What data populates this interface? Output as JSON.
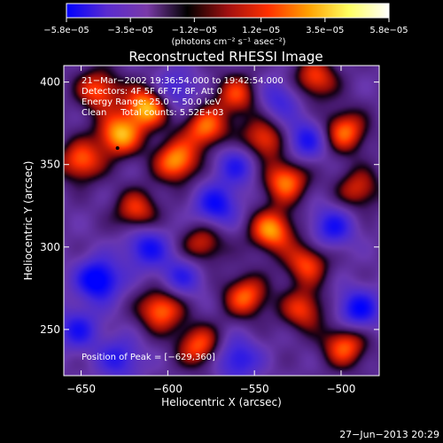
{
  "chart_data": {
    "type": "heatmap",
    "title": "Reconstructed RHESSI Image",
    "xlabel": "Heliocentric X (arcsec)",
    "ylabel": "Heliocentric Y (arcsec)",
    "xlim": [
      -660,
      -478
    ],
    "ylim": [
      222,
      410
    ],
    "xticks": [
      -650,
      -600,
      -550,
      -500
    ],
    "yticks": [
      250,
      300,
      350,
      400
    ],
    "x_tick_labels": [
      "−650",
      "−600",
      "−550",
      "−500"
    ],
    "y_tick_labels": [
      "250",
      "300",
      "350",
      "400"
    ],
    "colorbar": {
      "min": -5.8e-05,
      "max": 5.8e-05,
      "ticks": [
        -5.8e-05,
        -3.5e-05,
        -1.2e-05,
        1.2e-05,
        3.5e-05,
        5.8e-05
      ],
      "tick_labels": [
        "−5.8e−05",
        "−3.5e−05",
        "−1.2e−05",
        "1.2e−05",
        "3.5e−05",
        "5.8e−05"
      ],
      "unit_label": "(photons cm⁻² s⁻¹ asec⁻²)",
      "colors": [
        "#0000ff",
        "#5a2bd0",
        "#7a3aa8",
        "#000000",
        "#a01010",
        "#ff3000",
        "#ffa000",
        "#ffff60",
        "#ffffff"
      ]
    },
    "annotations": [
      "21−Mar−2002 19:36:54.000 to 19:42:54.000",
      "Detectors: 4F 5F 6F 7F 8F, Att 0",
      "Energy Range: 25.0 − 50.0 keV",
      "Clean     Total counts: 5.52E+03"
    ],
    "peak_text": "Position of Peak = [−629,360]",
    "peak": [
      -629,
      360
    ],
    "footer_date": "27−Jun−2013 20:29",
    "blobs": [
      {
        "x": -640,
        "y": 395,
        "v": 4e-05
      },
      {
        "x": -612,
        "y": 385,
        "v": 5.5e-05
      },
      {
        "x": -628,
        "y": 368,
        "v": 5.2e-05
      },
      {
        "x": -595,
        "y": 352,
        "v": 5e-05
      },
      {
        "x": -578,
        "y": 372,
        "v": 4.4e-05
      },
      {
        "x": -560,
        "y": 392,
        "v": 3.6e-05
      },
      {
        "x": -545,
        "y": 365,
        "v": 4e-05
      },
      {
        "x": -532,
        "y": 340,
        "v": 4.6e-05
      },
      {
        "x": -540,
        "y": 310,
        "v": 5e-05
      },
      {
        "x": -515,
        "y": 402,
        "v": 3.8e-05
      },
      {
        "x": -498,
        "y": 370,
        "v": 4.4e-05
      },
      {
        "x": -490,
        "y": 335,
        "v": 3.2e-05
      },
      {
        "x": -650,
        "y": 352,
        "v": 4.2e-05
      },
      {
        "x": -618,
        "y": 322,
        "v": 3.6e-05
      },
      {
        "x": -580,
        "y": 302,
        "v": 3.2e-05
      },
      {
        "x": -604,
        "y": 262,
        "v": 4.6e-05
      },
      {
        "x": -582,
        "y": 240,
        "v": 4e-05
      },
      {
        "x": -555,
        "y": 270,
        "v": 4.2e-05
      },
      {
        "x": -522,
        "y": 262,
        "v": 3.6e-05
      },
      {
        "x": -498,
        "y": 240,
        "v": 4.2e-05
      },
      {
        "x": -520,
        "y": 290,
        "v": 3.8e-05
      },
      {
        "x": -640,
        "y": 280,
        "v": -5e-05
      },
      {
        "x": -612,
        "y": 300,
        "v": -3.6e-05
      },
      {
        "x": -652,
        "y": 250,
        "v": -3.2e-05
      },
      {
        "x": -572,
        "y": 325,
        "v": -3.8e-05
      },
      {
        "x": -560,
        "y": 350,
        "v": -3e-05
      },
      {
        "x": -505,
        "y": 312,
        "v": -3.4e-05
      },
      {
        "x": -490,
        "y": 262,
        "v": -4e-05
      },
      {
        "x": -560,
        "y": 232,
        "v": -3.4e-05
      },
      {
        "x": -628,
        "y": 232,
        "v": -3e-05
      },
      {
        "x": -596,
        "y": 395,
        "v": -2.8e-05
      },
      {
        "x": -536,
        "y": 390,
        "v": -2.6e-05
      },
      {
        "x": -520,
        "y": 365,
        "v": -3.4e-05
      },
      {
        "x": -592,
        "y": 282,
        "v": -2.8e-05
      }
    ]
  }
}
